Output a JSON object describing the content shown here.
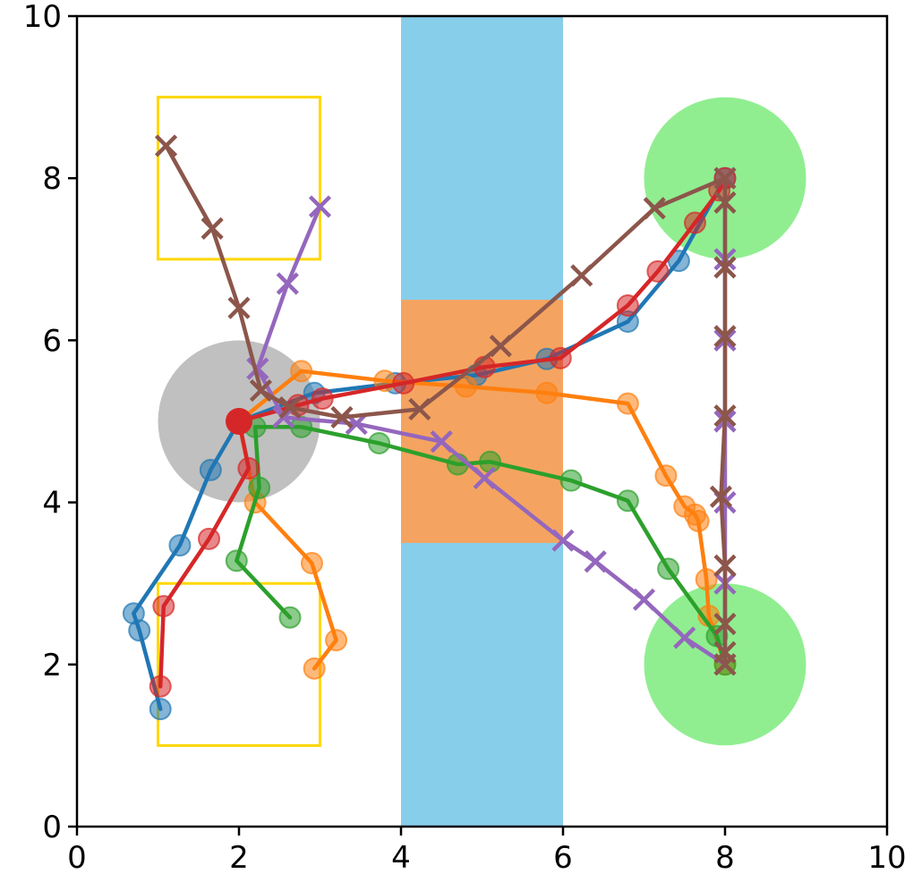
{
  "chart_data": {
    "type": "scatter",
    "title": "",
    "xlabel": "",
    "ylabel": "",
    "xlim": [
      0,
      10
    ],
    "ylim": [
      0,
      10
    ],
    "grid": false,
    "legend": "none",
    "x_ticks": [
      "0",
      "2",
      "4",
      "6",
      "8",
      "10"
    ],
    "y_ticks": [
      "0",
      "2",
      "4",
      "6",
      "8",
      "10"
    ],
    "regions": {
      "river": {
        "x": [
          4,
          6
        ],
        "y": [
          0,
          10
        ],
        "color": "#87ceeb"
      },
      "bridge": {
        "x": [
          4,
          6
        ],
        "y": [
          3.5,
          6.5
        ],
        "color": "#f4a460"
      },
      "boxes": [
        {
          "x": [
            1,
            3
          ],
          "y": [
            7,
            9
          ],
          "color": "#ffd700"
        },
        {
          "x": [
            1,
            3
          ],
          "y": [
            1,
            3
          ],
          "color": "#ffd700"
        }
      ],
      "circles": [
        {
          "cx": 2,
          "cy": 5,
          "r": 1,
          "color": "#c0c0c0"
        },
        {
          "cx": 8,
          "cy": 8,
          "r": 1,
          "color": "#90ee90"
        },
        {
          "cx": 8,
          "cy": 2,
          "r": 1,
          "color": "#90ee90"
        }
      ]
    },
    "series": [
      {
        "color": "#1f77b4",
        "marker": "o",
        "points": [
          [
            1.03,
            1.45
          ],
          [
            0.77,
            2.42
          ],
          [
            0.7,
            2.63
          ],
          [
            1.27,
            3.47
          ],
          [
            1.65,
            4.4
          ],
          [
            2,
            5
          ],
          [
            2.93,
            5.35
          ],
          [
            3.93,
            5.47
          ],
          [
            4.93,
            5.57
          ],
          [
            5.8,
            5.77
          ],
          [
            6.8,
            6.23
          ],
          [
            7.43,
            6.98
          ],
          [
            8,
            8
          ]
        ]
      },
      {
        "color": "#ff7f0e",
        "marker": "o",
        "points": [
          [
            2.93,
            1.95
          ],
          [
            3.2,
            2.3
          ],
          [
            2.9,
            3.25
          ],
          [
            2.2,
            4
          ],
          [
            2,
            5
          ],
          [
            2.77,
            5.62
          ],
          [
            3.8,
            5.5
          ],
          [
            4.8,
            5.43
          ],
          [
            5.8,
            5.35
          ],
          [
            6.8,
            5.22
          ],
          [
            7.27,
            4.33
          ],
          [
            7.5,
            3.95
          ],
          [
            7.63,
            3.85
          ],
          [
            7.67,
            3.77
          ],
          [
            7.77,
            3.05
          ],
          [
            7.8,
            2.6
          ],
          [
            8,
            2
          ]
        ]
      },
      {
        "color": "#2ca02c",
        "marker": "o",
        "points": [
          [
            2.63,
            2.58
          ],
          [
            1.97,
            3.28
          ],
          [
            2.25,
            4.18
          ],
          [
            2.2,
            4.93
          ],
          [
            2.77,
            4.93
          ],
          [
            3.73,
            4.73
          ],
          [
            4.7,
            4.47
          ],
          [
            5.1,
            4.5
          ],
          [
            6.1,
            4.27
          ],
          [
            6.8,
            4.02
          ],
          [
            7.3,
            3.18
          ],
          [
            7.9,
            2.35
          ],
          [
            8,
            2
          ]
        ]
      },
      {
        "color": "#d62728",
        "marker": "o",
        "points": [
          [
            1.03,
            1.73
          ],
          [
            1.07,
            2.72
          ],
          [
            1.63,
            3.55
          ],
          [
            2.12,
            4.42
          ],
          [
            2,
            5
          ],
          [
            2.73,
            5.2
          ],
          [
            3.03,
            5.28
          ],
          [
            4.03,
            5.47
          ],
          [
            5.03,
            5.67
          ],
          [
            5.97,
            5.78
          ],
          [
            6.8,
            6.43
          ],
          [
            7.17,
            6.85
          ],
          [
            7.63,
            7.45
          ],
          [
            7.93,
            7.85
          ],
          [
            8,
            8
          ]
        ]
      },
      {
        "color": "#9467bd",
        "marker": "x",
        "points": [
          [
            3,
            7.65
          ],
          [
            2.6,
            6.7
          ],
          [
            2.23,
            5.65
          ],
          [
            2.55,
            5.05
          ],
          [
            3.45,
            4.97
          ],
          [
            4.5,
            4.75
          ],
          [
            5.03,
            4.3
          ],
          [
            6,
            3.53
          ],
          [
            6.4,
            3.27
          ],
          [
            7,
            2.8
          ],
          [
            7.5,
            2.33
          ],
          [
            8,
            2
          ],
          [
            8,
            3
          ],
          [
            8,
            4
          ],
          [
            8,
            5
          ],
          [
            8,
            6
          ],
          [
            8,
            7
          ],
          [
            8,
            8
          ]
        ]
      },
      {
        "color": "#8c564b",
        "marker": "x",
        "points": [
          [
            1.1,
            8.4
          ],
          [
            1.67,
            7.38
          ],
          [
            2,
            6.4
          ],
          [
            2.27,
            5.38
          ],
          [
            2.63,
            5.17
          ],
          [
            3.27,
            5.05
          ],
          [
            4.23,
            5.15
          ],
          [
            5.23,
            5.93
          ],
          [
            6.23,
            6.8
          ],
          [
            7.13,
            7.63
          ],
          [
            8,
            8
          ],
          [
            8,
            7.7
          ],
          [
            8,
            6.9
          ],
          [
            8,
            6.05
          ],
          [
            8,
            5.07
          ],
          [
            7.95,
            4.07
          ],
          [
            8,
            3.22
          ],
          [
            8,
            2.5
          ],
          [
            8,
            2.15
          ],
          [
            8,
            2
          ]
        ]
      }
    ]
  }
}
